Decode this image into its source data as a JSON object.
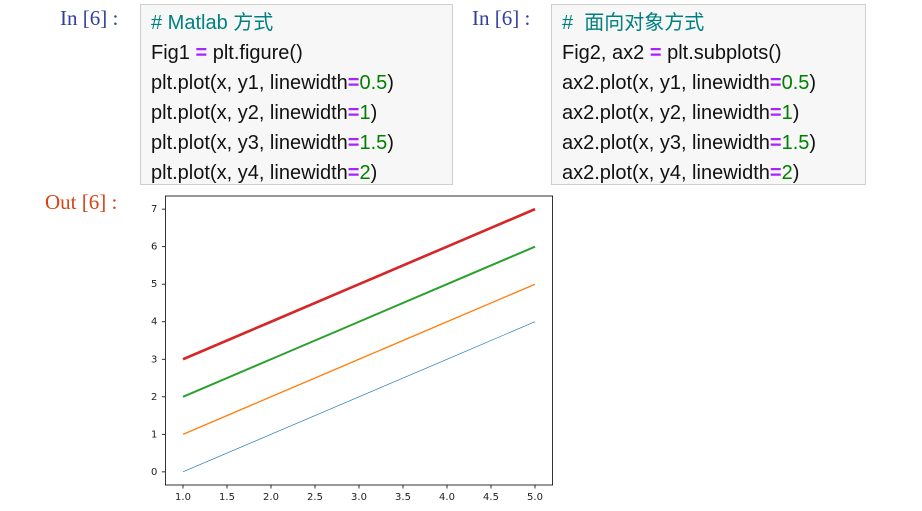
{
  "cells": [
    {
      "prompt": "In [6] :",
      "code": [
        "# Matlab 方式",
        "Fig1 = plt.figure()",
        "plt.plot(x, y1, linewidth=0.5)",
        "plt.plot(x, y2, linewidth=1)",
        "plt.plot(x, y3, linewidth=1.5)",
        "plt.plot(x, y4, linewidth=2)"
      ]
    },
    {
      "prompt": "In [6] :",
      "code": [
        "#  面向对象方式",
        "Fig2, ax2 = plt.subplots()",
        "ax2.plot(x, y1, linewidth=0.5)",
        "ax2.plot(x, y2, linewidth=1)",
        "ax2.plot(x, y3, linewidth=1.5)",
        "ax2.plot(x, y4, linewidth=2)"
      ]
    }
  ],
  "output": {
    "prompt": "Out [6] :"
  },
  "chart_data": {
    "type": "line",
    "x": [
      1,
      2,
      3,
      4,
      5
    ],
    "series": [
      {
        "color": "#1f77b4",
        "linewidth": 0.5,
        "values": [
          0,
          1,
          2,
          3,
          4
        ]
      },
      {
        "color": "#ff7f0e",
        "linewidth": 1,
        "values": [
          1,
          2,
          3,
          4,
          5
        ]
      },
      {
        "color": "#2ca02c",
        "linewidth": 1.5,
        "values": [
          2,
          3,
          4,
          5,
          6
        ]
      },
      {
        "color": "#d62728",
        "linewidth": 2,
        "values": [
          3,
          4,
          5,
          6,
          7
        ]
      }
    ],
    "xlim": [
      0.8,
      5.2
    ],
    "xticks": [
      {
        "value": 1,
        "label": "1.0"
      },
      {
        "value": 1.5,
        "label": "1.5"
      },
      {
        "value": 2,
        "label": "2.0"
      },
      {
        "value": 2.5,
        "label": "2.5"
      },
      {
        "value": 3,
        "label": "3.0"
      },
      {
        "value": 3.5,
        "label": "3.5"
      },
      {
        "value": 4,
        "label": "4.0"
      },
      {
        "value": 4.5,
        "label": "4.5"
      },
      {
        "value": 5,
        "label": "5.0"
      }
    ],
    "ylim": [
      -0.35,
      7.35
    ],
    "yticks": [
      0,
      1,
      2,
      3,
      4,
      5,
      6,
      7
    ]
  }
}
